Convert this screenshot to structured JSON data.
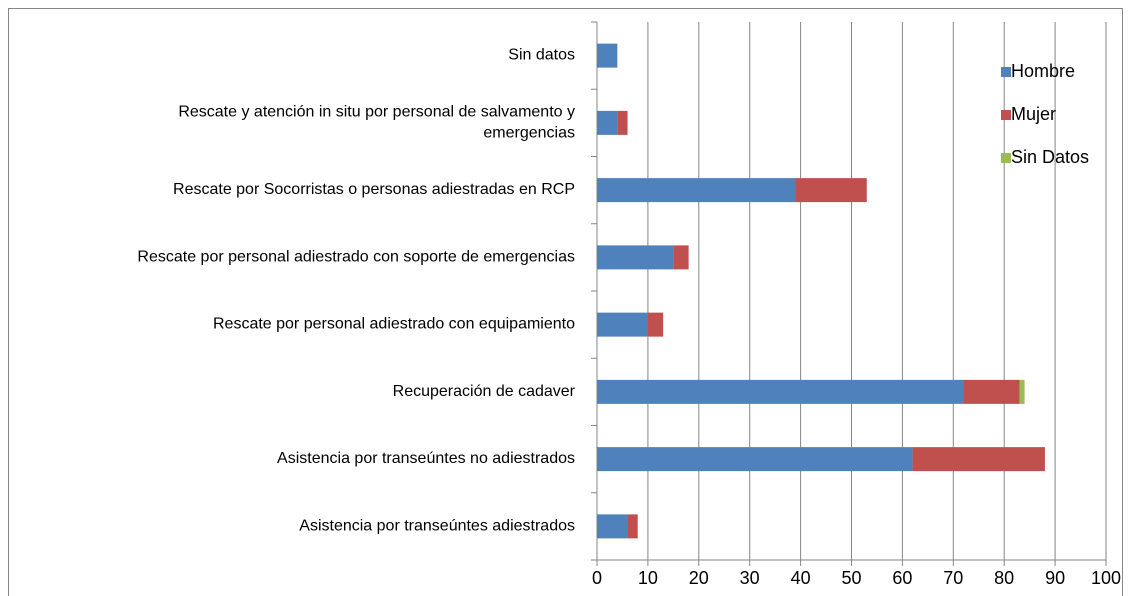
{
  "chart_data": {
    "type": "stacked-barh",
    "categories": [
      "Sin datos",
      "Rescate y atención in situ por personal de salvamento y emergencias",
      "Rescate por Socorristas o personas adiestradas en RCP",
      "Rescate por personal adiestrado con soporte de emergencias",
      "Rescate por personal adiestrado con equipamiento",
      "Recuperación de cadaver",
      "Asistencia por transeúntes no adiestrados",
      "Asistencia por transeúntes adiestrados"
    ],
    "series": [
      {
        "name": "Hombre",
        "color": "#4f81bd",
        "values": [
          4,
          4,
          39,
          15,
          10,
          72,
          62,
          6
        ]
      },
      {
        "name": "Mujer",
        "color": "#c0504d",
        "values": [
          0,
          2,
          14,
          3,
          3,
          11,
          26,
          2
        ]
      },
      {
        "name": "Sin Datos",
        "color": "#9bbb59",
        "values": [
          0,
          0,
          0,
          0,
          0,
          1,
          0,
          0
        ]
      }
    ],
    "xlim": [
      0,
      100
    ],
    "xticks": [
      0,
      10,
      20,
      30,
      40,
      50,
      60,
      70,
      80,
      90,
      100
    ],
    "grid": true,
    "legend": "right"
  }
}
